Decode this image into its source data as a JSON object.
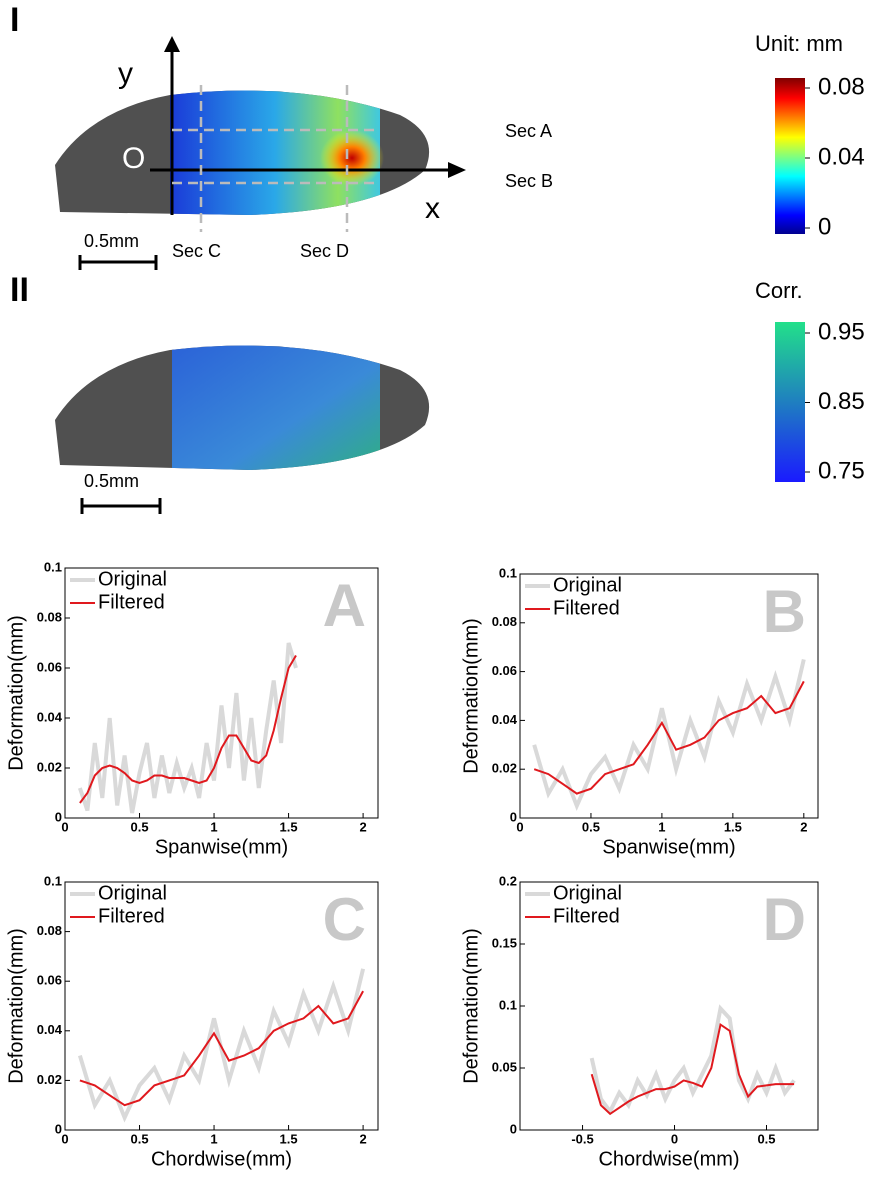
{
  "panel_I": {
    "label": "I",
    "axis_y": "y",
    "axis_x": "x",
    "origin": "O",
    "sections": [
      "Sec A",
      "Sec B",
      "Sec C",
      "Sec D"
    ],
    "scale": "0.5mm"
  },
  "colorbar_I": {
    "title": "Unit: mm",
    "lim": [
      0,
      0.08
    ],
    "ticks": [
      0.08,
      0.04,
      0
    ]
  },
  "panel_II": {
    "label": "II",
    "scale": "0.5mm"
  },
  "colorbar_II": {
    "title": "Corr.",
    "lim": [
      0.75,
      0.95
    ],
    "ticks": [
      0.95,
      0.85,
      0.75
    ]
  },
  "chart_data": [
    {
      "type": "line",
      "letter": "A",
      "x_label": "Spanwise(mm)",
      "y_label": "Deformation(mm)",
      "x": [
        0.1,
        0.15,
        0.2,
        0.25,
        0.3,
        0.35,
        0.4,
        0.45,
        0.5,
        0.55,
        0.6,
        0.65,
        0.7,
        0.75,
        0.8,
        0.85,
        0.9,
        0.95,
        1.0,
        1.05,
        1.1,
        1.15,
        1.2,
        1.25,
        1.3,
        1.35,
        1.4,
        1.45,
        1.5,
        1.55
      ],
      "series": [
        {
          "name": "Original",
          "color": "#d9d9d9",
          "values": [
            0.012,
            0.003,
            0.03,
            0.008,
            0.04,
            0.005,
            0.025,
            0.002,
            0.018,
            0.03,
            0.008,
            0.025,
            0.01,
            0.022,
            0.012,
            0.02,
            0.008,
            0.03,
            0.015,
            0.045,
            0.02,
            0.05,
            0.015,
            0.04,
            0.012,
            0.035,
            0.055,
            0.03,
            0.07,
            0.06
          ]
        },
        {
          "name": "Filtered",
          "color": "#e0191e",
          "values": [
            0.006,
            0.01,
            0.017,
            0.02,
            0.021,
            0.02,
            0.018,
            0.015,
            0.014,
            0.015,
            0.017,
            0.017,
            0.016,
            0.016,
            0.016,
            0.015,
            0.014,
            0.015,
            0.02,
            0.028,
            0.033,
            0.033,
            0.028,
            0.023,
            0.022,
            0.025,
            0.035,
            0.048,
            0.06,
            0.065
          ]
        }
      ],
      "xlim": [
        0,
        2.1
      ],
      "xticks": [
        0,
        0.5,
        1,
        1.5,
        2
      ],
      "ylim": [
        0,
        0.1
      ],
      "yticks": [
        0,
        0.02,
        0.04,
        0.06,
        0.08,
        0.1
      ]
    },
    {
      "type": "line",
      "letter": "B",
      "x_label": "Spanwise(mm)",
      "y_label": "Deformation(mm)",
      "x": [
        0.1,
        0.2,
        0.3,
        0.4,
        0.5,
        0.6,
        0.7,
        0.8,
        0.9,
        1.0,
        1.1,
        1.2,
        1.3,
        1.4,
        1.5,
        1.6,
        1.7,
        1.8,
        1.9,
        2.0
      ],
      "series": [
        {
          "name": "Original",
          "color": "#d9d9d9",
          "values": [
            0.03,
            0.01,
            0.02,
            0.005,
            0.018,
            0.025,
            0.012,
            0.03,
            0.02,
            0.045,
            0.02,
            0.04,
            0.025,
            0.048,
            0.035,
            0.055,
            0.04,
            0.058,
            0.04,
            0.065
          ]
        },
        {
          "name": "Filtered",
          "color": "#e0191e",
          "values": [
            0.02,
            0.018,
            0.014,
            0.01,
            0.012,
            0.018,
            0.02,
            0.022,
            0.03,
            0.039,
            0.028,
            0.03,
            0.033,
            0.04,
            0.043,
            0.045,
            0.05,
            0.043,
            0.045,
            0.056
          ]
        }
      ],
      "xlim": [
        0,
        2.1
      ],
      "xticks": [
        0,
        0.5,
        1,
        1.5,
        2
      ],
      "ylim": [
        0,
        0.1
      ],
      "yticks": [
        0,
        0.02,
        0.04,
        0.06,
        0.08,
        0.1
      ]
    },
    {
      "type": "line",
      "letter": "C",
      "x_label": "Chordwise(mm)",
      "y_label": "Deformation(mm)",
      "x": [
        0.1,
        0.2,
        0.3,
        0.4,
        0.5,
        0.6,
        0.7,
        0.8,
        0.9,
        1.0,
        1.1,
        1.2,
        1.3,
        1.4,
        1.5,
        1.6,
        1.7,
        1.8,
        1.9,
        2.0
      ],
      "series": [
        {
          "name": "Original",
          "color": "#d9d9d9",
          "values": [
            0.03,
            0.01,
            0.02,
            0.005,
            0.018,
            0.025,
            0.012,
            0.03,
            0.02,
            0.045,
            0.02,
            0.04,
            0.025,
            0.048,
            0.035,
            0.055,
            0.04,
            0.058,
            0.04,
            0.065
          ]
        },
        {
          "name": "Filtered",
          "color": "#e0191e",
          "values": [
            0.02,
            0.018,
            0.014,
            0.01,
            0.012,
            0.018,
            0.02,
            0.022,
            0.03,
            0.039,
            0.028,
            0.03,
            0.033,
            0.04,
            0.043,
            0.045,
            0.05,
            0.043,
            0.045,
            0.056
          ]
        }
      ],
      "xlim": [
        0,
        2.1
      ],
      "xticks": [
        0,
        0.5,
        1,
        1.5,
        2
      ],
      "ylim": [
        0,
        0.1
      ],
      "yticks": [
        0,
        0.02,
        0.04,
        0.06,
        0.08,
        0.1
      ]
    },
    {
      "type": "line",
      "letter": "D",
      "x_label": "Chordwise(mm)",
      "y_label": "Deformation(mm)",
      "x": [
        -0.45,
        -0.4,
        -0.35,
        -0.3,
        -0.25,
        -0.2,
        -0.15,
        -0.1,
        -0.05,
        0,
        0.05,
        0.1,
        0.15,
        0.2,
        0.25,
        0.3,
        0.35,
        0.4,
        0.45,
        0.5,
        0.55,
        0.6,
        0.65
      ],
      "series": [
        {
          "name": "Original",
          "color": "#d9d9d9",
          "values": [
            0.058,
            0.025,
            0.015,
            0.03,
            0.02,
            0.04,
            0.028,
            0.045,
            0.025,
            0.04,
            0.05,
            0.03,
            0.045,
            0.06,
            0.098,
            0.09,
            0.04,
            0.025,
            0.045,
            0.03,
            0.05,
            0.03,
            0.04
          ]
        },
        {
          "name": "Filtered",
          "color": "#e0191e",
          "values": [
            0.045,
            0.02,
            0.013,
            0.018,
            0.023,
            0.027,
            0.03,
            0.033,
            0.033,
            0.035,
            0.04,
            0.038,
            0.035,
            0.05,
            0.085,
            0.08,
            0.045,
            0.027,
            0.035,
            0.036,
            0.037,
            0.037,
            0.037
          ]
        }
      ],
      "xlim": [
        -0.84,
        0.78
      ],
      "xticks": [
        -0.5,
        0,
        0.5
      ],
      "ylim": [
        0,
        0.2
      ],
      "yticks": [
        0,
        0.05,
        0.1,
        0.15,
        0.2
      ]
    }
  ]
}
